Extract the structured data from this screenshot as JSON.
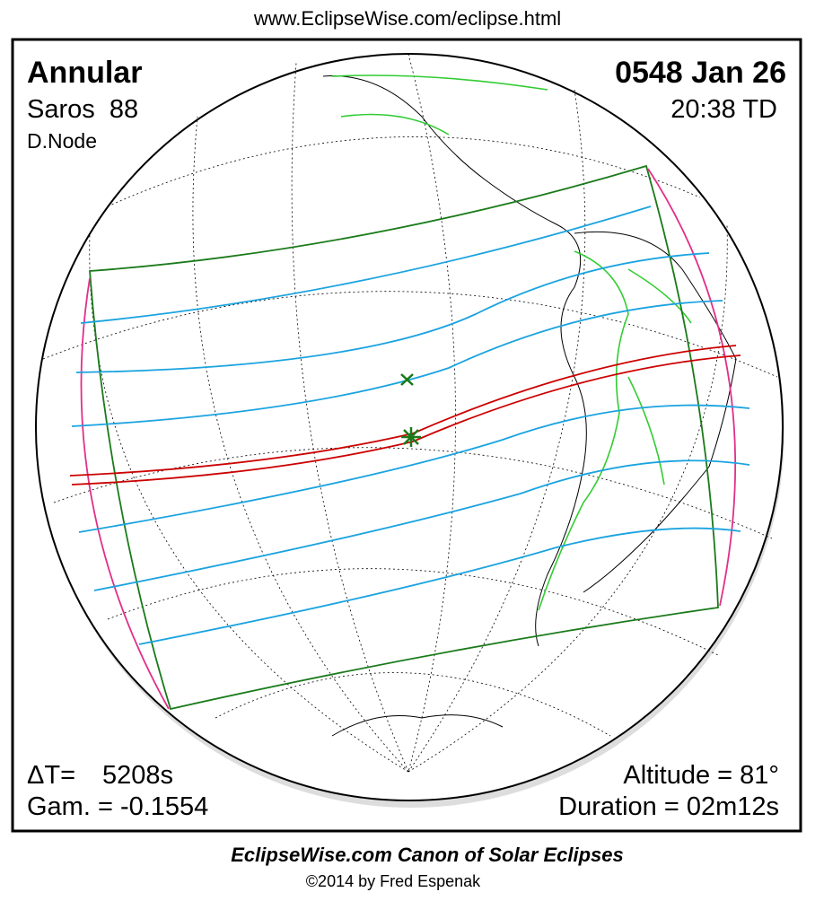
{
  "header": {
    "url": "www.EclipseWise.com/eclipse.html"
  },
  "eclipse": {
    "type": "Annular",
    "date": "0548 Jan 26",
    "saros": "Saros  88",
    "time": "20:38 TD",
    "node": "D.Node"
  },
  "parameters": {
    "delta_t_label": "ΔT=",
    "delta_t_value": "5208s",
    "gamma": "Gam. = -0.1554",
    "altitude": "Altitude = 81°",
    "duration": "Duration = 02m12s"
  },
  "footer": {
    "title": "EclipseWise.com Canon of Solar Eclipses",
    "copyright": "©2014 by Fred Espenak"
  }
}
